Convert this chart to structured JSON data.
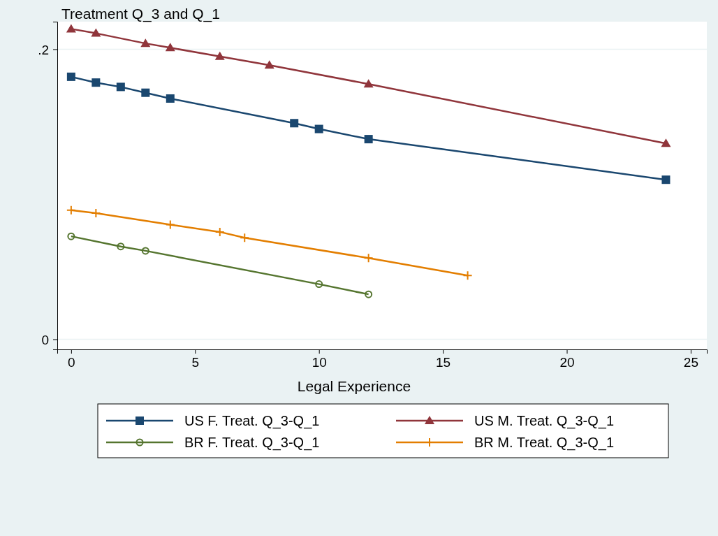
{
  "chart_data": {
    "type": "line",
    "ylabel": "Treatment Q_3 and Q_1",
    "xlabel": "Legal Experience",
    "xlim": [
      -0.56,
      25.65
    ],
    "xticks": [
      0,
      5,
      10,
      15,
      20,
      25
    ],
    "ylim": [
      -0.007,
      0.219
    ],
    "yticks": [
      0,
      {
        "value": 0.2,
        "label": ".2"
      }
    ],
    "grid": "y",
    "legend": "bottom",
    "series": [
      {
        "name": "US F. Treat. Q_3-Q_1",
        "color": "#1a476f",
        "marker": "square",
        "x": [
          0,
          1,
          2,
          3,
          4,
          9,
          10,
          12,
          24
        ],
        "values": [
          0.181,
          0.177,
          0.174,
          0.17,
          0.166,
          0.149,
          0.145,
          0.138,
          0.11
        ]
      },
      {
        "name": "US M. Treat. Q_3-Q_1",
        "color": "#90353b",
        "marker": "triangle",
        "x": [
          0,
          1,
          3,
          4,
          6,
          8,
          12,
          24
        ],
        "values": [
          0.214,
          0.211,
          0.204,
          0.201,
          0.195,
          0.189,
          0.176,
          0.135
        ]
      },
      {
        "name": "BR F. Treat. Q_3-Q_1",
        "color": "#55752f",
        "marker": "circle",
        "x": [
          0,
          2,
          3,
          10,
          12
        ],
        "values": [
          0.071,
          0.064,
          0.061,
          0.038,
          0.031
        ]
      },
      {
        "name": "BR M. Treat. Q_3-Q_1",
        "color": "#e37e00",
        "marker": "cross",
        "x": [
          0,
          1,
          4,
          6,
          7,
          12,
          16
        ],
        "values": [
          0.089,
          0.087,
          0.079,
          0.074,
          0.07,
          0.056,
          0.044
        ]
      }
    ]
  }
}
